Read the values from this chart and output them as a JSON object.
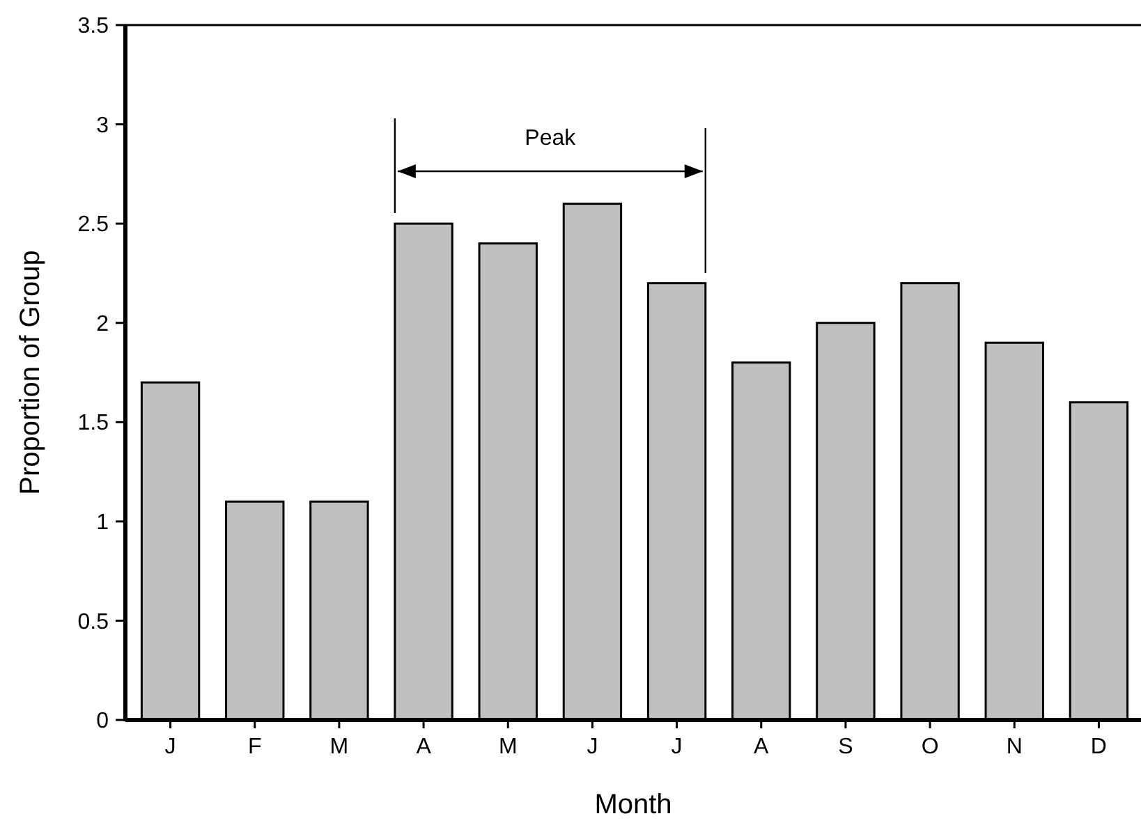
{
  "chart_data": {
    "type": "bar",
    "xlabel": "Month",
    "ylabel": "Proportion of Group",
    "categories": [
      "J",
      "F",
      "M",
      "A",
      "M",
      "J",
      "J",
      "A",
      "S",
      "O",
      "N",
      "D"
    ],
    "values": [
      1.7,
      1.1,
      1.1,
      2.5,
      2.4,
      2.6,
      2.2,
      1.8,
      2.0,
      2.2,
      1.9,
      1.6
    ],
    "color": "#c0c0c0",
    "ylim": [
      0,
      3.5
    ],
    "yticks": [
      0,
      0.5,
      1,
      1.5,
      2,
      2.5,
      3,
      3.5
    ],
    "annotations": [
      "Peak"
    ]
  }
}
